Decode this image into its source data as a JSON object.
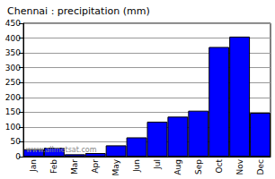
{
  "chart_data": {
    "type": "bar",
    "title": "Chennai : precipitation (mm)",
    "categories": [
      "Jan",
      "Feb",
      "Mar",
      "Apr",
      "May",
      "Jun",
      "Jul",
      "Aug",
      "Sep",
      "Oct",
      "Nov",
      "Dec"
    ],
    "values": [
      25,
      30,
      8,
      12,
      38,
      65,
      118,
      135,
      155,
      370,
      405,
      148
    ],
    "color": "#0000ff",
    "ylim": [
      0,
      450
    ],
    "yticks": [
      0,
      50,
      100,
      150,
      200,
      250,
      300,
      350,
      400,
      450
    ],
    "grid": true,
    "annotations": [
      "www.allmetsat.com"
    ]
  }
}
